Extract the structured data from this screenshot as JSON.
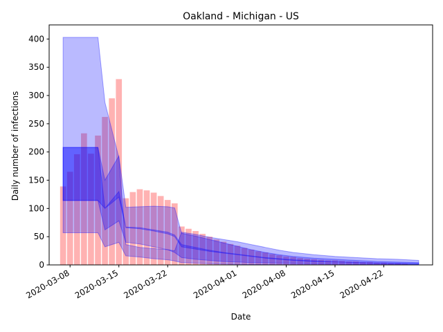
{
  "chart_data": {
    "type": "bar",
    "title": "Oakland - Michigan - US",
    "xlabel": "Date",
    "ylabel": "Daily number of infections",
    "ylim": [
      0,
      425
    ],
    "yticks": [
      0,
      50,
      100,
      150,
      200,
      250,
      300,
      350,
      400
    ],
    "xtick_labels": [
      "2020-03-08",
      "2020-03-15",
      "2020-03-22",
      "2020-04-01",
      "2020-04-08",
      "2020-04-15",
      "2020-04-22"
    ],
    "xtick_dates": [
      "2020-03-08",
      "2020-03-15",
      "2020-03-22",
      "2020-04-01",
      "2020-04-08",
      "2020-04-15",
      "2020-04-22"
    ],
    "xlim": [
      "2020-03-05",
      "2020-04-29"
    ],
    "grid": false,
    "colors": {
      "bars": "#ff0000",
      "band": "#0000ff"
    },
    "bars": {
      "dates": [
        "2020-03-07",
        "2020-03-08",
        "2020-03-09",
        "2020-03-10",
        "2020-03-11",
        "2020-03-12",
        "2020-03-13",
        "2020-03-14",
        "2020-03-15",
        "2020-03-16",
        "2020-03-17",
        "2020-03-18",
        "2020-03-19",
        "2020-03-20",
        "2020-03-21",
        "2020-03-22",
        "2020-03-23",
        "2020-03-24",
        "2020-03-25",
        "2020-03-26",
        "2020-03-27",
        "2020-03-28",
        "2020-03-29",
        "2020-03-30",
        "2020-03-31",
        "2020-04-01",
        "2020-04-02",
        "2020-04-03",
        "2020-04-04",
        "2020-04-05",
        "2020-04-06",
        "2020-04-07",
        "2020-04-08",
        "2020-04-09",
        "2020-04-10",
        "2020-04-11",
        "2020-04-12",
        "2020-04-13",
        "2020-04-14",
        "2020-04-15",
        "2020-04-16",
        "2020-04-17",
        "2020-04-18",
        "2020-04-19",
        "2020-04-20",
        "2020-04-21",
        "2020-04-22",
        "2020-04-23",
        "2020-04-24",
        "2020-04-25"
      ],
      "values": [
        139,
        165,
        196,
        233,
        197,
        229,
        262,
        295,
        329,
        118,
        129,
        134,
        132,
        128,
        122,
        115,
        109,
        68,
        64,
        60,
        55,
        50,
        45,
        41,
        37,
        34,
        30,
        27,
        24,
        22,
        19,
        17,
        15,
        14,
        12,
        11,
        10,
        9,
        8,
        8,
        7,
        6,
        6,
        5,
        5,
        4,
        4,
        3,
        3,
        2
      ]
    },
    "bands": [
      {
        "dates": [
          "2020-03-07",
          "2020-03-11",
          "2020-03-12",
          "2020-03-13",
          "2020-03-15",
          "2020-03-16",
          "2020-03-18",
          "2020-03-20",
          "2020-03-22",
          "2020-03-23",
          "2020-03-24",
          "2020-03-26",
          "2020-03-28",
          "2020-03-30",
          "2020-04-01",
          "2020-04-03",
          "2020-04-05",
          "2020-04-07",
          "2020-04-09",
          "2020-04-12",
          "2020-04-15",
          "2020-04-18",
          "2020-04-21",
          "2020-04-24",
          "2020-04-27"
        ],
        "lower": [
          57,
          57,
          57,
          32,
          40,
          16,
          14,
          11,
          9,
          7,
          4,
          3,
          2,
          1.5,
          1,
          0.8,
          0.6,
          0.5,
          0.4,
          0.3,
          0.2,
          0.2,
          0.1,
          0.1,
          0.1
        ],
        "upper": [
          403,
          403,
          403,
          288,
          190,
          36,
          31,
          29,
          27,
          25,
          58,
          54,
          49,
          45,
          41,
          36,
          31,
          26,
          22,
          18,
          15,
          13,
          11,
          10,
          8
        ]
      },
      {
        "dates": [
          "2020-03-07",
          "2020-03-11",
          "2020-03-12",
          "2020-03-13",
          "2020-03-15",
          "2020-03-16",
          "2020-03-18",
          "2020-03-20",
          "2020-03-22",
          "2020-03-23",
          "2020-03-24",
          "2020-03-26",
          "2020-03-28",
          "2020-03-30",
          "2020-04-01",
          "2020-04-03",
          "2020-04-05",
          "2020-04-07",
          "2020-04-09",
          "2020-04-12",
          "2020-04-15",
          "2020-04-18",
          "2020-04-21",
          "2020-04-24",
          "2020-04-27"
        ],
        "lower": [
          114,
          114,
          114,
          62,
          78,
          40,
          37,
          32,
          27,
          22,
          13,
          10,
          8,
          6,
          5,
          4,
          3.5,
          3,
          2.5,
          2,
          1.5,
          1.2,
          1,
          0.8,
          0.6
        ],
        "upper": [
          208,
          208,
          208,
          150,
          193,
          102,
          103,
          104,
          103,
          101,
          56,
          51,
          45,
          39,
          33,
          27,
          22,
          18,
          15,
          12,
          10,
          8,
          6,
          5,
          4
        ]
      },
      {
        "dates": [
          "2020-03-07",
          "2020-03-11",
          "2020-03-12",
          "2020-03-13",
          "2020-03-15",
          "2020-03-16",
          "2020-03-18",
          "2020-03-20",
          "2020-03-22",
          "2020-03-23",
          "2020-03-24",
          "2020-03-26",
          "2020-03-28",
          "2020-03-30",
          "2020-04-01",
          "2020-04-03",
          "2020-04-05",
          "2020-04-07",
          "2020-04-09",
          "2020-04-12",
          "2020-04-15",
          "2020-04-18",
          "2020-04-21",
          "2020-04-24",
          "2020-04-27"
        ],
        "lower": [
          114,
          114,
          114,
          100,
          120,
          66,
          64,
          60,
          55,
          50,
          32,
          28,
          24,
          21,
          18,
          15,
          12,
          10,
          8,
          6,
          5,
          4,
          3,
          2.5,
          2
        ],
        "upper": [
          208,
          208,
          208,
          100,
          130,
          67,
          66,
          62,
          58,
          53,
          36,
          31,
          26,
          22,
          19,
          16,
          13,
          11,
          9,
          7,
          5.5,
          4.5,
          3.5,
          3,
          2.5
        ]
      }
    ]
  }
}
